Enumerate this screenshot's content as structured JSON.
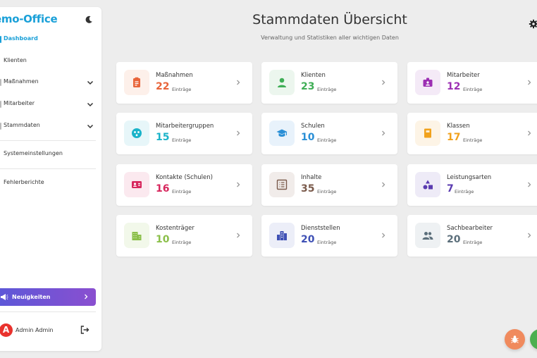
{
  "app": {
    "logo_text": "emo-Office"
  },
  "sidebar": {
    "items": [
      {
        "label": "Dashboard",
        "active": true,
        "has_children": false
      },
      {
        "label": "Klienten",
        "active": false,
        "has_children": false
      },
      {
        "label": "Maßnahmen",
        "active": false,
        "has_children": true
      },
      {
        "label": "Mitarbeiter",
        "active": false,
        "has_children": true
      },
      {
        "label": "Stammdaten",
        "active": false,
        "has_children": true
      },
      {
        "label": "Systemeinstellungen",
        "active": false,
        "has_children": false
      },
      {
        "label": "Fehlerberichte",
        "active": false,
        "has_children": false
      }
    ],
    "news_label": "Neuigkeiten",
    "user": {
      "initial": "A",
      "name": "Admin Admin"
    }
  },
  "header": {
    "title": "Stammdaten Übersicht",
    "subtitle": "Verwaltung und Statistiken aller wichtigen Daten"
  },
  "cards": [
    {
      "name": "Maßnahmen",
      "count": "22",
      "unit": "Einträge",
      "color": "#e8643a",
      "bg": "#fdf0ea",
      "icon": "clipboard-icon"
    },
    {
      "name": "Klienten",
      "count": "23",
      "unit": "Einträge",
      "color": "#3fae56",
      "bg": "#ecf6ee",
      "icon": "person-icon"
    },
    {
      "name": "Mitarbeiter",
      "count": "12",
      "unit": "Einträge",
      "color": "#9c2fb3",
      "bg": "#f4eaf7",
      "icon": "id-badge-icon"
    },
    {
      "name": "Mitarbeitergruppen",
      "count": "15",
      "unit": "Einträge",
      "color": "#1ab3c9",
      "bg": "#e7f6f9",
      "icon": "group-icon"
    },
    {
      "name": "Schulen",
      "count": "10",
      "unit": "Einträge",
      "color": "#2a8fd6",
      "bg": "#e8f2fb",
      "icon": "graduation-cap-icon"
    },
    {
      "name": "Klassen",
      "count": "17",
      "unit": "Einträge",
      "color": "#f1a21d",
      "bg": "#fdf4e6",
      "icon": "notebook-icon"
    },
    {
      "name": "Kontakte (Schulen)",
      "count": "16",
      "unit": "Einträge",
      "color": "#d7285e",
      "bg": "#fbe9ef",
      "icon": "contact-card-icon"
    },
    {
      "name": "Inhalte",
      "count": "35",
      "unit": "Einträge",
      "color": "#7b5b4c",
      "bg": "#f1ecea",
      "icon": "list-alt-icon"
    },
    {
      "name": "Leistungsarten",
      "count": "7",
      "unit": "Einträge",
      "color": "#5a3bb0",
      "bg": "#eeebf7",
      "icon": "shapes-icon"
    },
    {
      "name": "Kostenträger",
      "count": "10",
      "unit": "Einträge",
      "color": "#8bbf4a",
      "bg": "#f2f8ea",
      "icon": "building-icon"
    },
    {
      "name": "Dienststellen",
      "count": "20",
      "unit": "Einträge",
      "color": "#3f51b5",
      "bg": "#eceef8",
      "icon": "city-icon"
    },
    {
      "name": "Sachbearbeiter",
      "count": "20",
      "unit": "Einträge",
      "color": "#5c6f7b",
      "bg": "#eef1f3",
      "icon": "people-icon"
    }
  ],
  "fabs": [
    {
      "icon": "bug-icon",
      "color": "#f08a5d"
    },
    {
      "icon": "chat-icon",
      "color": "#4caf50"
    }
  ]
}
